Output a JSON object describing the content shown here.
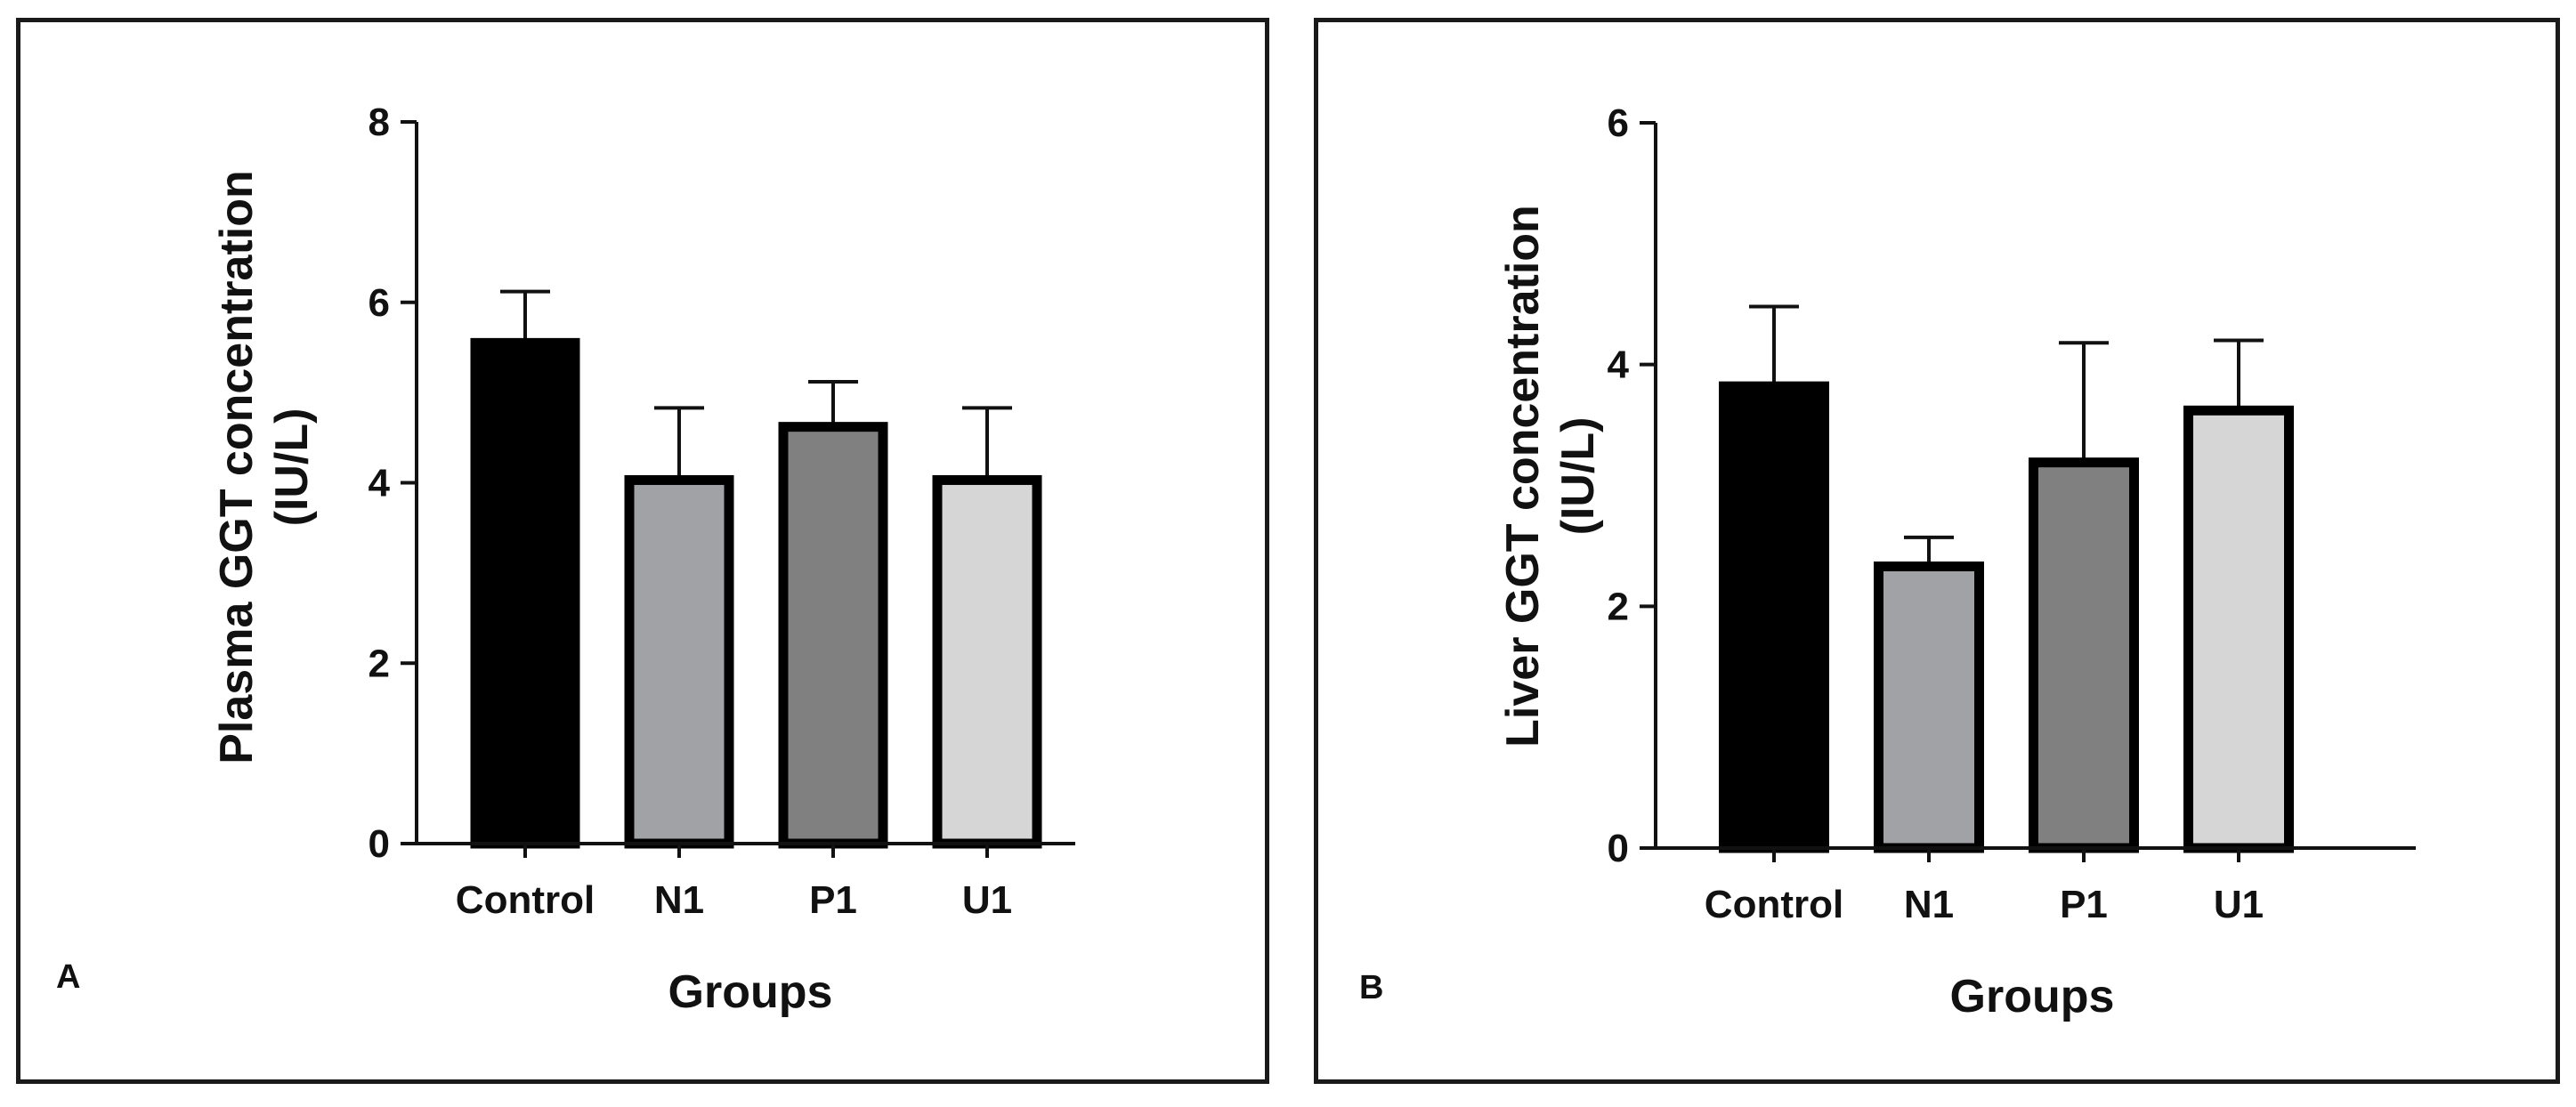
{
  "figure": {
    "panels": [
      {
        "letter": "A",
        "ylabel_line1": "Plasma GGT concentration",
        "ylabel_line2": "(IU/L)",
        "xlabel": "Groups"
      },
      {
        "letter": "B",
        "ylabel_line1": "Liver GGT concentration",
        "ylabel_line2": "(IU/L)",
        "xlabel": "Groups"
      }
    ]
  },
  "chart_data": [
    {
      "type": "bar",
      "title": "",
      "panel": "A",
      "categories": [
        "Control",
        "N1",
        "P1",
        "U1"
      ],
      "values": [
        5.55,
        4.03,
        4.62,
        4.03
      ],
      "errors": [
        0.57,
        0.8,
        0.5,
        0.8
      ],
      "colors": [
        "#000000",
        "#a1a2a6",
        "#808080",
        "#d6d6d6"
      ],
      "xlabel": "Groups",
      "ylabel": "Plasma GGT concentration (IU/L)",
      "ylim": [
        0,
        8
      ],
      "yticks": [
        0,
        2,
        4,
        6,
        8
      ]
    },
    {
      "type": "bar",
      "title": "",
      "panel": "B",
      "categories": [
        "Control",
        "N1",
        "P1",
        "U1"
      ],
      "values": [
        3.82,
        2.33,
        3.19,
        3.62
      ],
      "errors": [
        0.66,
        0.24,
        0.99,
        0.58
      ],
      "colors": [
        "#000000",
        "#a1a2a6",
        "#808080",
        "#d6d6d6"
      ],
      "xlabel": "Groups",
      "ylabel": "Liver GGT concentration (IU/L)",
      "ylim": [
        0,
        6
      ],
      "yticks": [
        0,
        2,
        4,
        6
      ]
    }
  ]
}
